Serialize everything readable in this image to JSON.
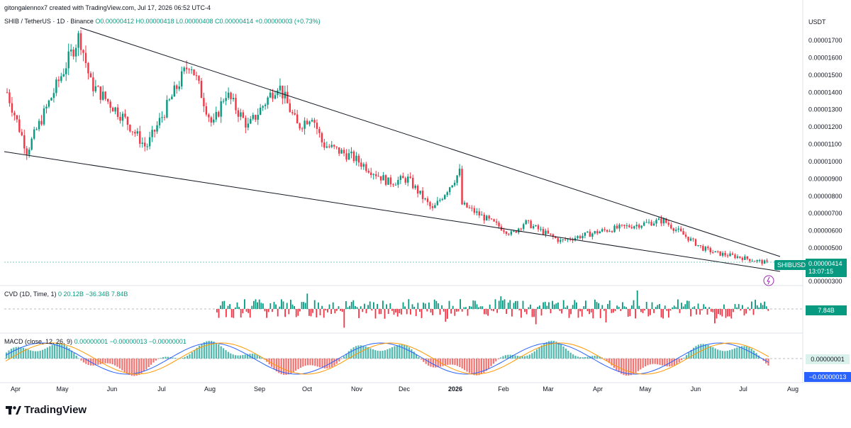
{
  "header": {
    "credit": "gitongalennox7 created with TradingView.com, Jul 17, 2026 06:52 UTC-4",
    "symbol": "SHIB / TetherUS · 1D · Binance",
    "ohlc": "O0.00000412 H0.00000418 L0.00000408 C0.00000414 +0.00000003 (+0.73%)"
  },
  "price_axis": {
    "currency": "USDT",
    "ticks": [
      "0.00001700",
      "0.00001600",
      "0.00001500",
      "0.00001400",
      "0.00001300",
      "0.00001200",
      "0.00001100",
      "0.00001000",
      "0.00000900",
      "0.00000800",
      "0.00000700",
      "0.00000600",
      "0.00000500",
      "0.00000300"
    ],
    "last_price": "0.00000414",
    "countdown": "13:07:15",
    "ticker": "SHIBUSDT"
  },
  "cvd": {
    "label": "CVD (1D, Time, 1)",
    "values": "0  20.12B  −36.34B  7.84B",
    "last": "7.84B"
  },
  "macd": {
    "label": "MACD (close, 12, 26, 9)",
    "values": "0.00000001  −0.00000013  −0.00000001",
    "last": "0.00000001",
    "signal": "−0.00000013"
  },
  "time_axis": [
    "Apr",
    "May",
    "Jun",
    "Jul",
    "Aug",
    "Sep",
    "Oct",
    "Nov",
    "Dec",
    "2026",
    "Feb",
    "Mar",
    "Apr",
    "May",
    "Jun",
    "Jul",
    "Aug"
  ],
  "brand": "TradingView",
  "colors": {
    "up": "#089981",
    "down": "#f23645",
    "line": "#131722",
    "macd": "#2962ff",
    "signal": "#ff9800"
  },
  "chart_data": {
    "type": "candlestick",
    "symbol": "SHIBUSDT",
    "ylim": [
      3e-06,
      1.78e-05
    ],
    "y_log": false,
    "grid": false,
    "key_points": [
      {
        "x": "Apr",
        "y": 1.4e-05
      },
      {
        "x": "Apr",
        "y": 1.06e-05
      },
      {
        "x": "May",
        "y": 1.73e-05
      },
      {
        "x": "May",
        "y": 1.45e-05
      },
      {
        "x": "Jun",
        "y": 1.25e-05
      },
      {
        "x": "Jul",
        "y": 1.08e-05
      },
      {
        "x": "Jul",
        "y": 1.58e-05
      },
      {
        "x": "Aug",
        "y": 1.2e-05
      },
      {
        "x": "Aug",
        "y": 1.4e-05
      },
      {
        "x": "Sep",
        "y": 1.2e-05
      },
      {
        "x": "Sep",
        "y": 1.45e-05
      },
      {
        "x": "Oct",
        "y": 1.2e-05
      },
      {
        "x": "Oct",
        "y": 1.27e-05
      },
      {
        "x": "Oct",
        "y": 1.1e-05
      },
      {
        "x": "Nov",
        "y": 1.03e-05
      },
      {
        "x": "Nov",
        "y": 8.8e-06
      },
      {
        "x": "Dec",
        "y": 9e-06
      },
      {
        "x": "Dec",
        "y": 7.2e-06
      },
      {
        "x": "2026",
        "y": 9.5e-06
      },
      {
        "x": "2026",
        "y": 7.8e-06
      },
      {
        "x": "Feb",
        "y": 5.8e-06
      },
      {
        "x": "Feb",
        "y": 6.5e-06
      },
      {
        "x": "Mar",
        "y": 5.4e-06
      },
      {
        "x": "Apr",
        "y": 6e-06
      },
      {
        "x": "May",
        "y": 6.6e-06
      },
      {
        "x": "Jun",
        "y": 5e-06
      },
      {
        "x": "Jun",
        "y": 4.7e-06
      },
      {
        "x": "Jul",
        "y": 4.5e-06
      },
      {
        "x": "Jul",
        "y": 4.1e-06
      }
    ],
    "trendlines": [
      {
        "name": "upper",
        "from": {
          "x": "May",
          "y": 1.75e-05
        },
        "to": {
          "x": "Aug",
          "y": 4.5e-06
        }
      },
      {
        "name": "lower",
        "from": {
          "x": "Apr",
          "y": 1.08e-05
        },
        "to": {
          "x": "Aug",
          "y": 3.7e-06
        }
      }
    ]
  }
}
